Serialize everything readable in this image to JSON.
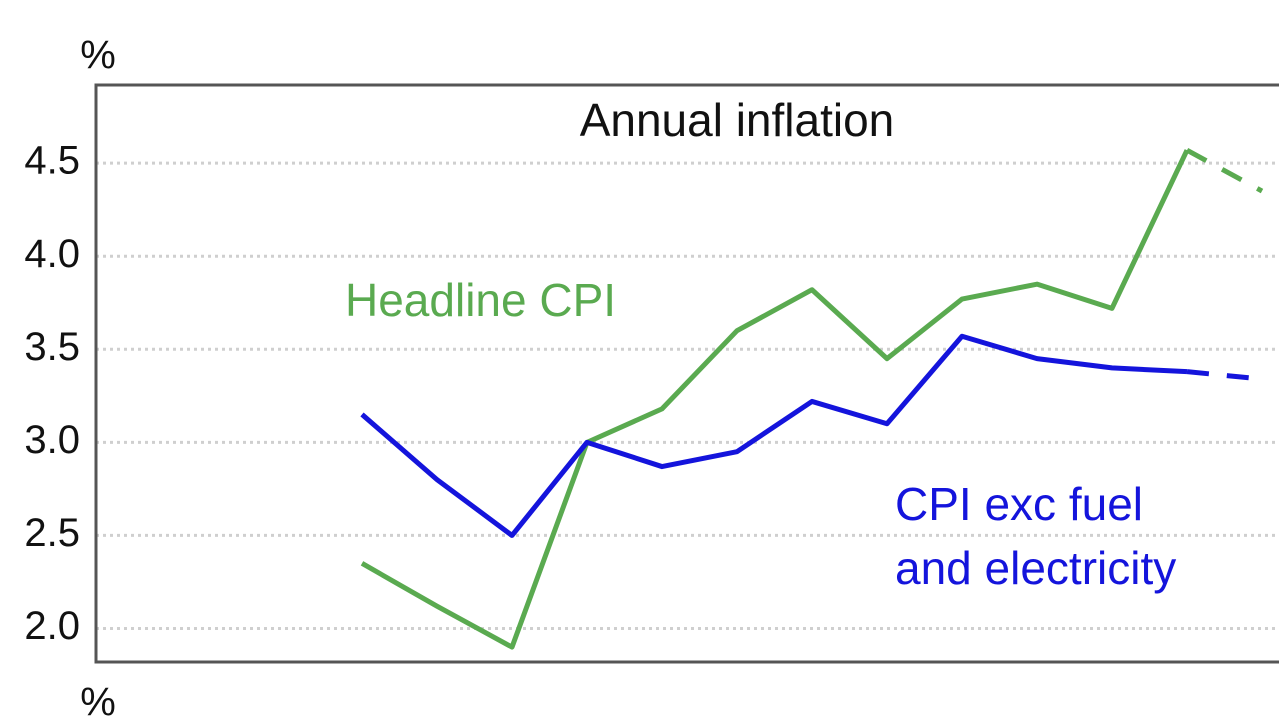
{
  "chart_data": {
    "type": "line",
    "title": "Annual inflation",
    "unit": "%",
    "lower_unit": "%",
    "categories": [
      null,
      null,
      null,
      null,
      null,
      null,
      null,
      null,
      null,
      null,
      null,
      null,
      null
    ],
    "series": [
      {
        "name": "Headline CPI",
        "color": "#5aaa50",
        "values": [
          2.35,
          2.12,
          1.9,
          3.0,
          3.18,
          3.6,
          3.82,
          3.45,
          3.77,
          3.85,
          3.72,
          4.57,
          4.35
        ]
      },
      {
        "name": "CPI exc fuel and electricity",
        "color": "#1414dc",
        "values": [
          3.15,
          2.8,
          2.5,
          3.0,
          2.87,
          2.95,
          3.22,
          3.1,
          3.57,
          3.45,
          3.4,
          3.38,
          3.34
        ]
      }
    ],
    "forecast_start": 11,
    "ylim": [
      1.82,
      4.92
    ],
    "yticks": [
      {
        "value": 2,
        "label": "2.0"
      },
      2.5,
      {
        "value": 3,
        "label": "3.0"
      },
      3.5,
      {
        "value": 4,
        "label": "4.0"
      },
      4.5
    ],
    "grid": true
  }
}
